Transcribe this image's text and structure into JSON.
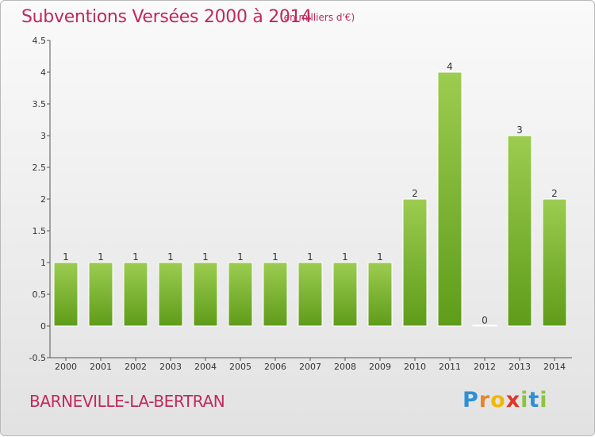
{
  "header": {
    "title": "Subventions Versées 2000 à 2014",
    "subtitle": "(en milliers d'€)"
  },
  "footer": {
    "commune": "BARNEVILLE-LA-BERTRAN",
    "logo": "Proxiti"
  },
  "colors": {
    "accent": "#c0285e",
    "bar_top": "#9ccc50",
    "bar_bottom": "#5f9c1a"
  },
  "chart_data": {
    "type": "bar",
    "title": "Subventions Versées 2000 à 2014",
    "subtitle": "(en milliers d'€)",
    "categories": [
      "2000",
      "2001",
      "2002",
      "2003",
      "2004",
      "2005",
      "2006",
      "2007",
      "2008",
      "2009",
      "2010",
      "2011",
      "2012",
      "2013",
      "2014"
    ],
    "values": [
      1,
      1,
      1,
      1,
      1,
      1,
      1,
      1,
      1,
      1,
      2,
      4,
      0,
      3,
      2
    ],
    "data_labels": [
      "1",
      "1",
      "1",
      "1",
      "1",
      "1",
      "1",
      "1",
      "1",
      "1",
      "2",
      "4",
      "0",
      "3",
      "2"
    ],
    "ylim": [
      -0.5,
      4.5
    ],
    "yticks": [
      -0.5,
      0,
      0.5,
      1,
      1.5,
      2,
      2.5,
      3,
      3.5,
      4,
      4.5
    ],
    "ytick_labels": [
      "-0.5",
      "0",
      "0.5",
      "1",
      "1.5",
      "2",
      "2.5",
      "3",
      "3.5",
      "4",
      "4.5"
    ],
    "grid": false,
    "legend": "none"
  }
}
